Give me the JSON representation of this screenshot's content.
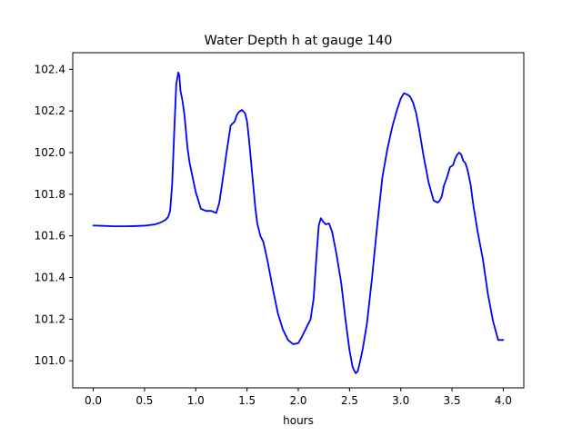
{
  "chart_data": {
    "type": "line",
    "title": "Water Depth h at gauge 140",
    "xlabel": "hours",
    "ylabel": "",
    "xlim": [
      -0.2,
      4.2
    ],
    "ylim": [
      100.87,
      102.48
    ],
    "xticks": [
      0.0,
      0.5,
      1.0,
      1.5,
      2.0,
      2.5,
      3.0,
      3.5,
      4.0
    ],
    "xtick_labels": [
      "0.0",
      "0.5",
      "1.0",
      "1.5",
      "2.0",
      "2.5",
      "3.0",
      "3.5",
      "4.0"
    ],
    "yticks": [
      101.0,
      101.2,
      101.4,
      101.6,
      101.8,
      102.0,
      102.2,
      102.4
    ],
    "ytick_labels": [
      "101.0",
      "101.2",
      "101.4",
      "101.6",
      "101.8",
      "102.0",
      "102.2",
      "102.4"
    ],
    "grid": false,
    "series": [
      {
        "color": "#0000ff",
        "x": [
          0.0,
          0.1,
          0.2,
          0.3,
          0.4,
          0.5,
          0.6,
          0.65,
          0.7,
          0.73,
          0.75,
          0.77,
          0.79,
          0.81,
          0.83,
          0.84,
          0.85,
          0.87,
          0.89,
          0.92,
          0.94,
          0.97,
          1.0,
          1.05,
          1.1,
          1.15,
          1.2,
          1.23,
          1.26,
          1.3,
          1.34,
          1.38,
          1.4,
          1.42,
          1.45,
          1.48,
          1.5,
          1.52,
          1.55,
          1.58,
          1.6,
          1.63,
          1.66,
          1.7,
          1.75,
          1.8,
          1.85,
          1.9,
          1.95,
          2.0,
          2.03,
          2.07,
          2.12,
          2.15,
          2.18,
          2.2,
          2.22,
          2.24,
          2.27,
          2.3,
          2.33,
          2.37,
          2.42,
          2.46,
          2.5,
          2.53,
          2.56,
          2.58,
          2.6,
          2.63,
          2.67,
          2.72,
          2.77,
          2.82,
          2.87,
          2.92,
          2.96,
          3.0,
          3.03,
          3.06,
          3.09,
          3.12,
          3.15,
          3.18,
          3.22,
          3.27,
          3.32,
          3.36,
          3.38,
          3.4,
          3.42,
          3.45,
          3.48,
          3.51,
          3.53,
          3.55,
          3.57,
          3.59,
          3.61,
          3.63,
          3.65,
          3.68,
          3.71,
          3.75,
          3.8,
          3.85,
          3.9,
          3.95,
          4.0
        ],
        "y": [
          101.65,
          101.648,
          101.646,
          101.646,
          101.647,
          101.649,
          101.655,
          101.663,
          101.675,
          101.69,
          101.72,
          101.85,
          102.1,
          102.33,
          102.385,
          102.37,
          102.3,
          102.25,
          102.18,
          102.02,
          101.95,
          101.88,
          101.81,
          101.73,
          101.72,
          101.72,
          101.71,
          101.76,
          101.86,
          102.0,
          102.13,
          102.15,
          102.18,
          102.195,
          102.205,
          102.19,
          102.15,
          102.06,
          101.9,
          101.74,
          101.66,
          101.6,
          101.57,
          101.48,
          101.35,
          101.23,
          101.15,
          101.1,
          101.08,
          101.085,
          101.11,
          101.15,
          101.2,
          101.3,
          101.52,
          101.65,
          101.685,
          101.67,
          101.655,
          101.66,
          101.62,
          101.52,
          101.37,
          101.2,
          101.05,
          100.97,
          100.94,
          100.95,
          100.99,
          101.06,
          101.18,
          101.4,
          101.65,
          101.88,
          102.02,
          102.13,
          102.2,
          102.26,
          102.285,
          102.28,
          102.27,
          102.24,
          102.19,
          102.11,
          101.99,
          101.86,
          101.77,
          101.76,
          101.77,
          101.79,
          101.84,
          101.88,
          101.93,
          101.94,
          101.97,
          101.99,
          102.0,
          101.99,
          101.96,
          101.95,
          101.92,
          101.85,
          101.74,
          101.62,
          101.49,
          101.32,
          101.19,
          101.1,
          101.1
        ]
      }
    ]
  }
}
